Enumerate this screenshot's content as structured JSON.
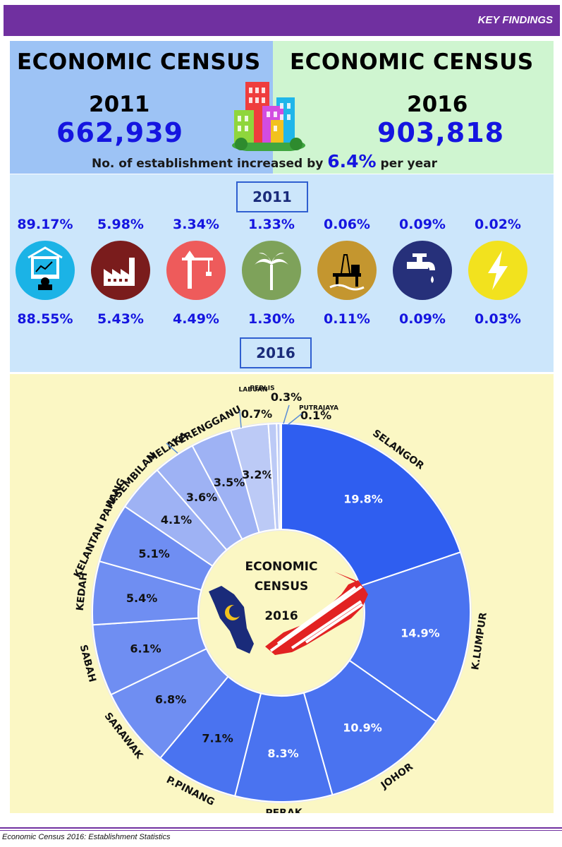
{
  "header": {
    "label": "KEY FINDINGS"
  },
  "census": {
    "left": {
      "title": "ECONOMIC CENSUS",
      "year": "2011",
      "value": "662,939",
      "color": "#9dc3f5"
    },
    "right": {
      "title": "ECONOMIC CENSUS",
      "year": "2016",
      "value": "903,818",
      "color": "#cff5d0"
    },
    "increase_text": "No. of establishment increased by",
    "increase_rate": "6.4%",
    "increase_suffix": "per year",
    "icon": "city-buildings-icon"
  },
  "sectors": {
    "year_top": "2011",
    "year_bottom": "2016",
    "items": [
      {
        "icon": "services-icon",
        "color": "#1bb3e6",
        "pct_2011": "89.17%",
        "pct_2016": "88.55%"
      },
      {
        "icon": "factory-icon",
        "color": "#7a1c1c",
        "pct_2011": "5.98%",
        "pct_2016": "5.43%"
      },
      {
        "icon": "crane-icon",
        "color": "#ee5b5b",
        "pct_2011": "3.34%",
        "pct_2016": "4.49%"
      },
      {
        "icon": "palm-tree-icon",
        "color": "#7ea25a",
        "pct_2011": "1.33%",
        "pct_2016": "1.30%"
      },
      {
        "icon": "oil-rig-icon",
        "color": "#c4962f",
        "pct_2011": "0.06%",
        "pct_2016": "0.11%"
      },
      {
        "icon": "water-tap-icon",
        "color": "#26307a",
        "pct_2011": "0.09%",
        "pct_2016": "0.09%"
      },
      {
        "icon": "lightning-icon",
        "color": "#f2e21e",
        "pct_2011": "0.02%",
        "pct_2016": "0.03%"
      }
    ]
  },
  "chart_data": {
    "type": "pie",
    "donut": true,
    "center_title": [
      "ECONOMIC",
      "CENSUS"
    ],
    "center_year": "2016",
    "center_icon": "malaysia-map-flag-icon",
    "slices": [
      {
        "name": "SELANGOR",
        "value": 19.8,
        "label": "19.8%"
      },
      {
        "name": "K.LUMPUR",
        "value": 14.9,
        "label": "14.9%"
      },
      {
        "name": "JOHOR",
        "value": 10.9,
        "label": "10.9%"
      },
      {
        "name": "PERAK",
        "value": 8.3,
        "label": "8.3%"
      },
      {
        "name": "P.PINANG",
        "value": 7.1,
        "label": "7.1%"
      },
      {
        "name": "SARAWAK",
        "value": 6.8,
        "label": "6.8%"
      },
      {
        "name": "SABAH",
        "value": 6.1,
        "label": "6.1%"
      },
      {
        "name": "KEDAH",
        "value": 5.4,
        "label": "5.4%"
      },
      {
        "name": "KELANTAN PAHANG",
        "value": 5.1,
        "label": "5.1%"
      },
      {
        "name": "N.SEMBILAN",
        "value": 4.1,
        "label": "4.1%"
      },
      {
        "name": "MELAKA",
        "value": 3.6,
        "label": "3.6%"
      },
      {
        "name": "TERENGGANU",
        "value": 3.5,
        "label": "3.5%"
      },
      {
        "name": "PERLIS",
        "value": 3.2,
        "label": "3.2%"
      },
      {
        "name": "LABUAN",
        "value": 0.7,
        "label": "0.7%"
      },
      {
        "name": "",
        "value": 0.3,
        "label": "0.3%"
      },
      {
        "name": "PUTRAJAYA",
        "value": 0.1,
        "label": "0.1%"
      }
    ],
    "colors": {
      "dark": "#2f5ef0",
      "mid": "#4a73f0",
      "light": "#6f8ef2",
      "pale": "#9eb2f4",
      "faint": "#bccaf6"
    }
  },
  "footer": {
    "text": "Economic Census 2016: Establishment Statistics"
  }
}
